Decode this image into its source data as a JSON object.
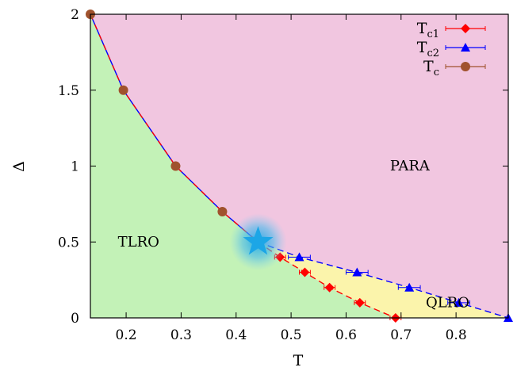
{
  "chart_data": {
    "type": "scatter",
    "xlabel": "T",
    "ylabel": "Δ",
    "xlim": [
      0.135,
      0.895
    ],
    "ylim": [
      0,
      2
    ],
    "xticks": [
      "0.2",
      "0.3",
      "0.4",
      "0.5",
      "0.6",
      "0.7",
      "0.8"
    ],
    "yticks": [
      "0",
      "0.5",
      "1",
      "1.5",
      "2"
    ],
    "legend_position": "top-right",
    "series": [
      {
        "name": "T",
        "sub": "c1",
        "color": "#ff0000",
        "marker": "diamond",
        "line": "dashed",
        "x": [
          0.48,
          0.525,
          0.57,
          0.625,
          0.69
        ],
        "y": [
          0.4,
          0.3,
          0.2,
          0.1,
          0.0
        ],
        "xerr": [
          0.01,
          0.01,
          0.01,
          0.01,
          0.01
        ]
      },
      {
        "name": "T",
        "sub": "c2",
        "color": "#0000ff",
        "marker": "triangle",
        "line": "dashed",
        "x": [
          0.515,
          0.62,
          0.715,
          0.805,
          0.895
        ],
        "y": [
          0.4,
          0.3,
          0.2,
          0.1,
          0.0
        ],
        "xerr": [
          0.02,
          0.02,
          0.02,
          0.02,
          0.0
        ]
      },
      {
        "name": "T",
        "sub": "c",
        "color": "#a0522d",
        "marker": "circle",
        "line": "solid",
        "x": [
          0.135,
          0.195,
          0.29,
          0.375
        ],
        "y": [
          2.0,
          1.5,
          1.0,
          0.7
        ],
        "xerr": [
          0,
          0,
          0,
          0
        ]
      }
    ],
    "regions": [
      {
        "label": "PARA",
        "color": "#f1c6e0",
        "x": 0.68,
        "y": 0.97
      },
      {
        "label": "TLRO",
        "color": "#c3f2b7",
        "x": 0.185,
        "y": 0.47
      },
      {
        "label": "QLRO",
        "color": "#fbf4ab",
        "x": 0.745,
        "y": 0.07
      }
    ],
    "annotations": [
      {
        "type": "star",
        "color": "#1ca6e6",
        "x": 0.44,
        "y": 0.5
      }
    ]
  }
}
